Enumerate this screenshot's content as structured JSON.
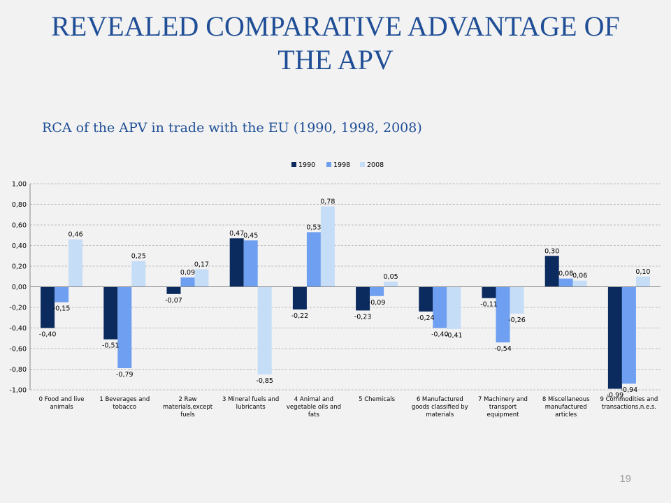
{
  "slide": {
    "title_line1": "REVEALED COMPARATIVE ADVANTAGE OF",
    "title_line2": "THE APV",
    "subtitle": "RCA of the APV in trade with the EU (1990, 1998, 2008)",
    "page_number": "19"
  },
  "colors": {
    "title": "#1f4e96",
    "series_1990": "#0b2a5e",
    "series_1998": "#6f9ff0",
    "series_2008": "#c6ddf7"
  },
  "chart_data": {
    "type": "bar",
    "title": "",
    "xlabel": "",
    "ylabel": "",
    "ylim": [
      -1.0,
      1.0
    ],
    "yticks": [
      1.0,
      0.8,
      0.6,
      0.4,
      0.2,
      0.0,
      -0.2,
      -0.4,
      -0.6,
      -0.8,
      -1.0
    ],
    "ytick_labels": [
      "1,00",
      "0,80",
      "0,60",
      "0,40",
      "0,20",
      "0,00",
      "-0,20",
      "-0,40",
      "-0,60",
      "-0,80",
      "-1,00"
    ],
    "grid": true,
    "legend_position": "top-center",
    "categories": [
      [
        "0 Food and live",
        "animals"
      ],
      [
        "1 Beverages and",
        "tobacco"
      ],
      [
        "2 Raw",
        "materials,except",
        "fuels"
      ],
      [
        "3 Mineral fuels and",
        "lubricants"
      ],
      [
        "4 Animal and",
        "vegetable oils and",
        "fats"
      ],
      [
        "5 Chemicals"
      ],
      [
        "6 Manufactured",
        "goods classified by",
        "materials"
      ],
      [
        "7 Machinery and",
        "transport",
        "equipment"
      ],
      [
        "8 Miscellaneous",
        "manufactured",
        "articles"
      ],
      [
        "9 Commodities and",
        "transactions,n.e.s."
      ]
    ],
    "series": [
      {
        "name": "1990",
        "color": "#0b2a5e",
        "values": [
          -0.4,
          -0.51,
          -0.07,
          0.47,
          -0.22,
          -0.23,
          -0.24,
          -0.11,
          0.3,
          -0.99
        ],
        "labels": [
          "-0,40",
          "-0,51",
          "-0,07",
          "0,47",
          "-0,22",
          "-0,23",
          "-0,24",
          "-0,11",
          "0,30",
          "-0,99"
        ]
      },
      {
        "name": "1998",
        "color": "#6f9ff0",
        "values": [
          -0.15,
          -0.79,
          0.09,
          0.45,
          0.53,
          -0.09,
          -0.4,
          -0.54,
          0.08,
          -0.94
        ],
        "labels": [
          "-0,15",
          "-0,79",
          "0,09",
          "0,45",
          "0,53",
          "-0,09",
          "-0,40",
          "-0,54",
          "0,08",
          "-0,94"
        ]
      },
      {
        "name": "2008",
        "color": "#c6ddf7",
        "values": [
          0.46,
          0.25,
          0.17,
          -0.85,
          0.78,
          0.05,
          -0.41,
          -0.26,
          0.06,
          0.1
        ],
        "labels": [
          "0,46",
          "0,25",
          "0,17",
          "-0,85",
          "0,78",
          "0,05",
          "-0,41",
          "-0,26",
          "0,06",
          "0,10"
        ]
      }
    ]
  }
}
